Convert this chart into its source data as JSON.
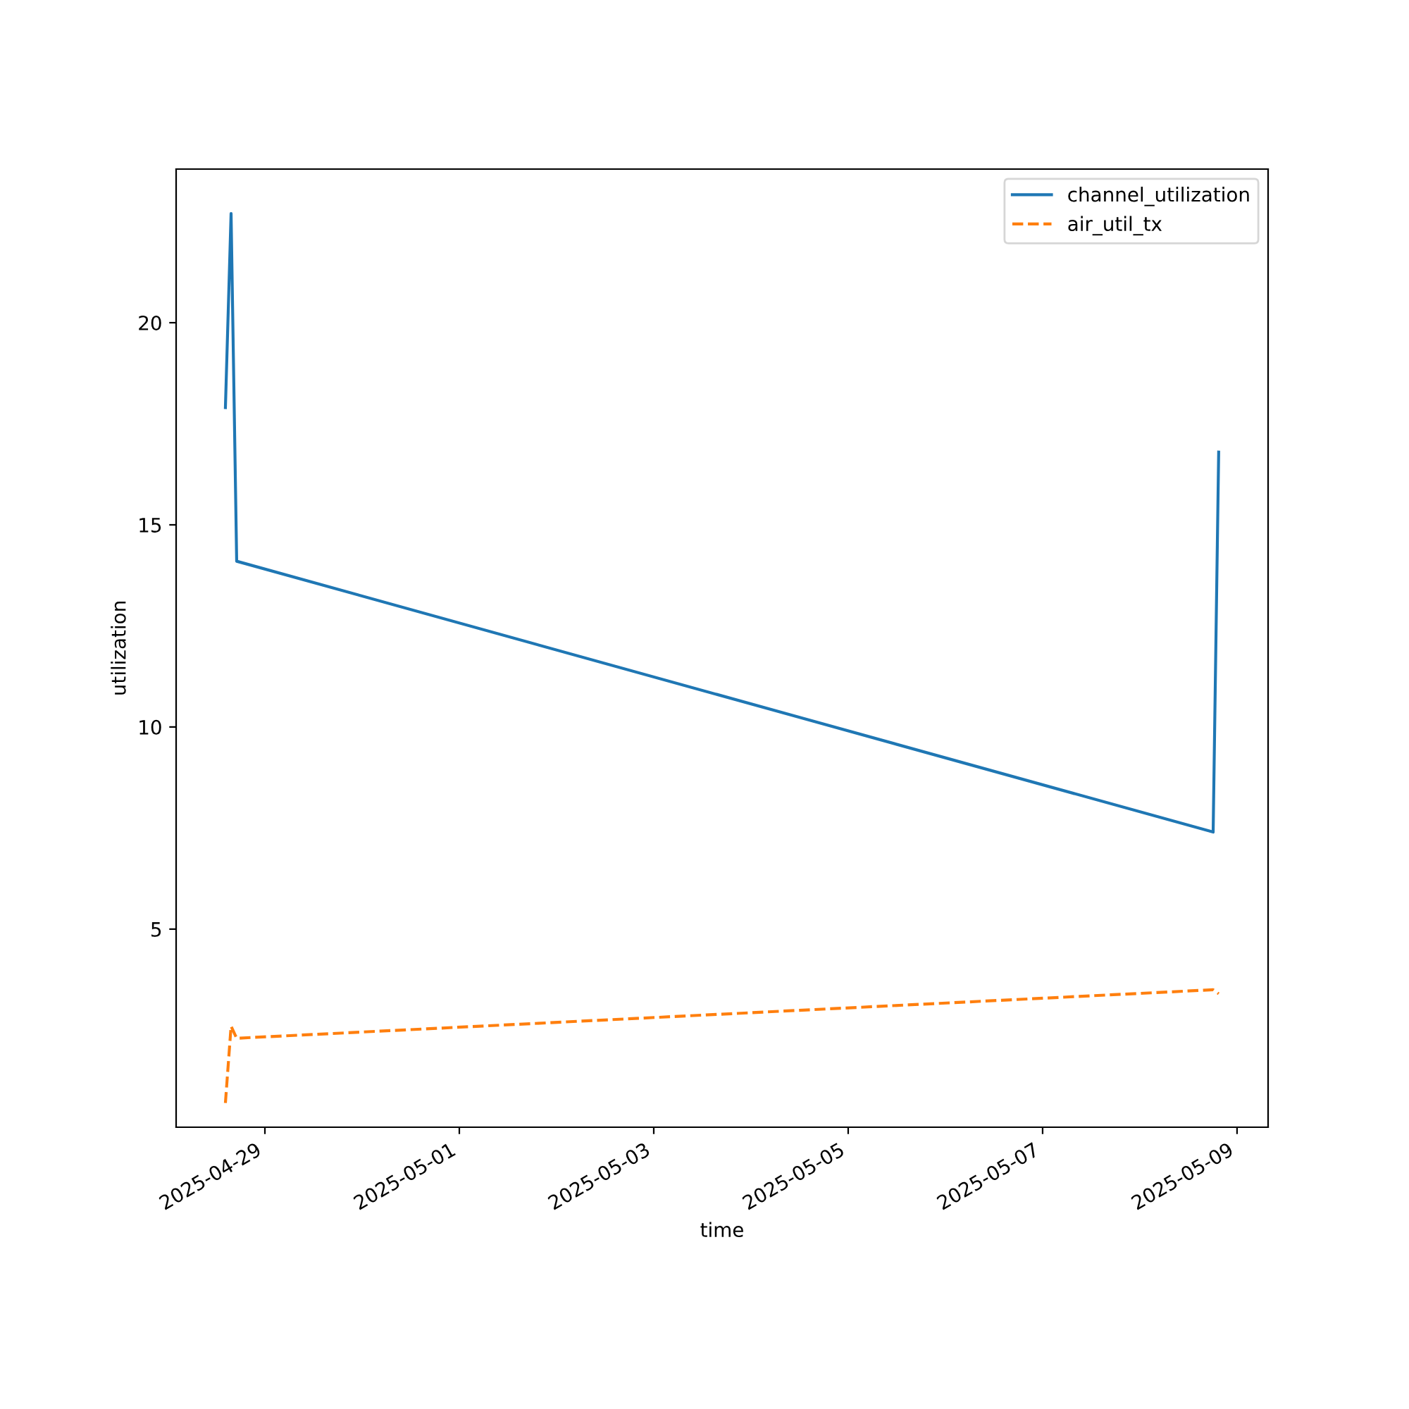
{
  "chart_data": {
    "type": "line",
    "xlabel": "time",
    "ylabel": "utilization",
    "series": [
      {
        "name": "channel_utilization",
        "color": "#1f77b4",
        "line_style": "solid",
        "x": [
          "2025-04-28T14:15",
          "2025-04-28T15:39",
          "2025-04-28T17:02",
          "2025-05-08T18:06",
          "2025-05-08T19:28"
        ],
        "values": [
          17.9,
          22.7,
          14.1,
          7.4,
          16.8
        ]
      },
      {
        "name": "air_util_tx",
        "color": "#ff7f0e",
        "line_style": "dashed",
        "x": [
          "2025-04-28T14:15",
          "2025-04-28T15:39",
          "2025-04-28T17:02",
          "2025-05-08T18:06",
          "2025-05-08T19:28"
        ],
        "values": [
          0.7,
          2.6,
          2.3,
          3.5,
          3.4
        ]
      }
    ],
    "xlim": [
      "2025-04-28T02:05",
      "2025-05-09T07:40"
    ],
    "xticks": [
      "2025-04-29",
      "2025-05-01",
      "2025-05-03",
      "2025-05-05",
      "2025-05-07",
      "2025-05-09"
    ],
    "ylim": [
      0.1,
      23.8
    ],
    "yticks": [
      5,
      10,
      15,
      20
    ],
    "legend": "top right",
    "grid": false
  }
}
